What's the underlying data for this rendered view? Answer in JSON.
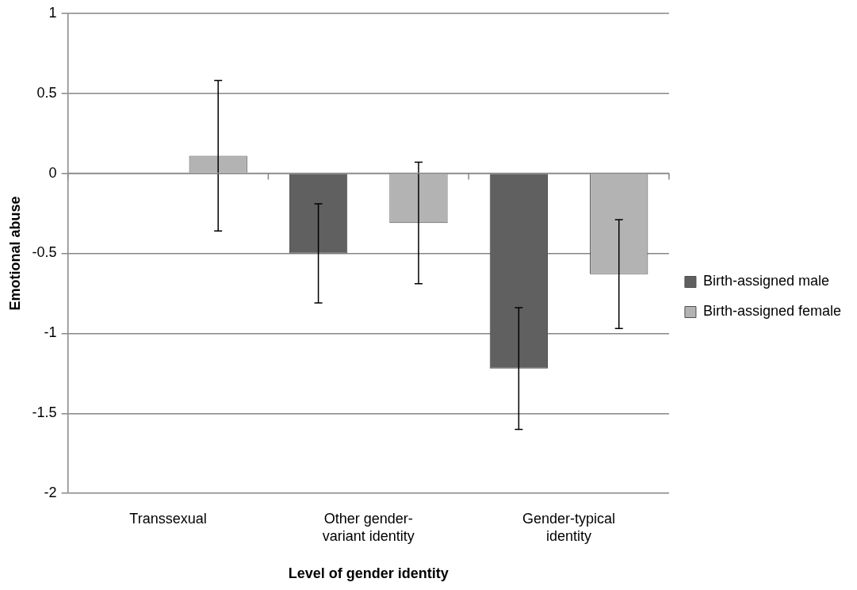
{
  "chart_data": {
    "type": "bar",
    "xlabel": "Level of gender identity",
    "ylabel": "Emotional abuse",
    "categories": [
      "Transsexual",
      "Other gender-variant identity",
      "Gender-typical identity"
    ],
    "series": [
      {
        "name": "Birth-assigned male",
        "color": "#606060",
        "values": [
          0,
          -0.5,
          -1.22
        ],
        "errors": [
          null,
          [
            -0.81,
            -0.19
          ],
          [
            -1.6,
            -0.84
          ]
        ]
      },
      {
        "name": "Birth-assigned female",
        "color": "#b3b3b3",
        "values": [
          0.11,
          -0.31,
          -0.63
        ],
        "errors": [
          [
            -0.36,
            0.58
          ],
          [
            -0.69,
            0.07
          ],
          [
            -0.97,
            -0.29
          ]
        ]
      }
    ],
    "ylim": [
      -2,
      1
    ],
    "yticks": [
      -2,
      -1.5,
      -1,
      -0.5,
      0,
      0.5,
      1
    ],
    "grid": "y",
    "legend": "right"
  }
}
